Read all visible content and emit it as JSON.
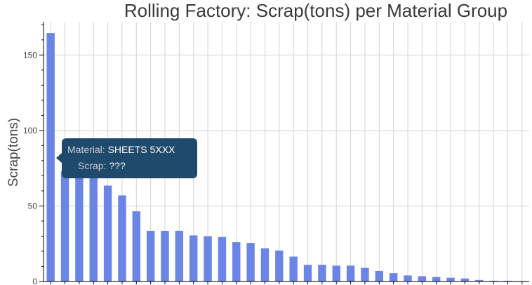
{
  "chart_data": {
    "type": "bar",
    "title": "Rolling Factory: Scrap(tons) per Material Group",
    "xlabel": "",
    "ylabel": "Scrap(tons)",
    "ylim": [
      0,
      172
    ],
    "yticks": [
      0,
      50,
      100,
      150
    ],
    "grid": true,
    "bar_color": "#6a85e6",
    "values": [
      164.5,
      73,
      71,
      69,
      63.5,
      57,
      46.5,
      33.5,
      33.5,
      33.5,
      30.5,
      30,
      29.5,
      26,
      25.5,
      22,
      20.5,
      16.5,
      11,
      11,
      10.5,
      10.5,
      9,
      7,
      5.5,
      4,
      3.5,
      3,
      2.5,
      2,
      1,
      0.5,
      0.5,
      0.3
    ]
  },
  "tooltip": {
    "material_key": "Material:",
    "material_value": "SHEETS 5XXX",
    "scrap_key": "Scrap:",
    "scrap_value": "???",
    "background": "#1f4a6b"
  }
}
